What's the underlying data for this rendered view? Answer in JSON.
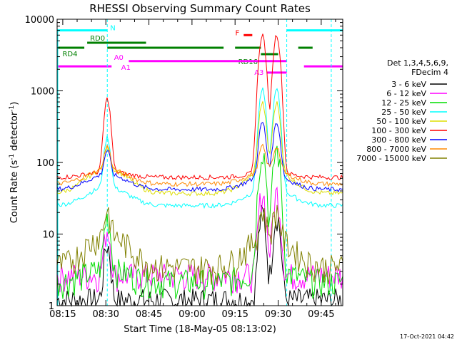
{
  "chart_data": {
    "type": "line",
    "title": "RHESSI Observing Summary Count Rates",
    "xlabel": "Start Time (18-May-05 08:13:02)",
    "ylabel": "Count Rate (s",
    "ylabel_sup1": "-1",
    "ylabel_mid": " detector",
    "ylabel_sup2": "-1",
    "ylabel_end": ")",
    "y_scale": "log",
    "ylim": [
      1,
      10000
    ],
    "xlim": [
      "08:13:02",
      "09:52:30"
    ],
    "x_ticks": [
      "08:15",
      "08:30",
      "08:45",
      "09:00",
      "09:15",
      "09:30",
      "09:45"
    ],
    "y_ticks": [
      "1",
      "10",
      "100",
      "1000",
      "10000"
    ],
    "timestamp": "17-Oct-2021 04:42",
    "legend": {
      "header1": "Det 1,3,4,5,6,9,",
      "header2": "FDecim 4",
      "placement": "right"
    },
    "series": [
      {
        "name": "3 - 6 keV",
        "color": "#000000",
        "base": 1.2,
        "bump": 1,
        "peak1": 6,
        "peak2": 18
      },
      {
        "name": "6 - 12 keV",
        "color": "#ff00ff",
        "base": 2.7,
        "bump": 1,
        "peak1": 9,
        "peak2": 35
      },
      {
        "name": "12 - 25 keV",
        "color": "#00dd00",
        "base": 2.2,
        "bump": 1.5,
        "peak1": 14,
        "peak2": 150
      },
      {
        "name": "25 - 50 keV",
        "color": "#00ffff",
        "base": 25,
        "bump": 1.8,
        "peak1": 180,
        "peak2": 1000
      },
      {
        "name": "50 - 100 keV",
        "color": "#dddd00",
        "base": 37,
        "bump": 2.2,
        "peak1": 80,
        "peak2": 600
      },
      {
        "name": "100 - 300 keV",
        "color": "#ff0000",
        "base": 62,
        "bump": 1.2,
        "peak1": 700,
        "peak2": 6000
      },
      {
        "name": "300 - 800 keV",
        "color": "#0000ff",
        "base": 42,
        "bump": 1.6,
        "peak1": 80,
        "peak2": 300
      },
      {
        "name": "800 - 7000 keV",
        "color": "#ff8800",
        "base": 50,
        "bump": 1.6,
        "peak1": 90,
        "peak2": 90
      },
      {
        "name": "7000 - 15000 keV",
        "color": "#808000",
        "base": 3.5,
        "bump": 2.8,
        "peak1": 12,
        "peak2": 12
      }
    ],
    "annotations": [
      {
        "label": "N",
        "color": "#00ffff",
        "y": 7000
      },
      {
        "label": "RD0",
        "color": "#008000",
        "y": 4700
      },
      {
        "label": "RD4",
        "color": "#008000",
        "y": 4000
      },
      {
        "label": "F",
        "color": "#ff0000",
        "y": 6000
      },
      {
        "label": "RD16",
        "color": "#008000",
        "y": 3250
      },
      {
        "label": "A0",
        "color": "#ff00ff",
        "y": 2600
      },
      {
        "label": "A1",
        "color": "#ff00ff",
        "y": 2200
      },
      {
        "label": "A3",
        "color": "#ff00ff",
        "y": 1800
      }
    ]
  }
}
